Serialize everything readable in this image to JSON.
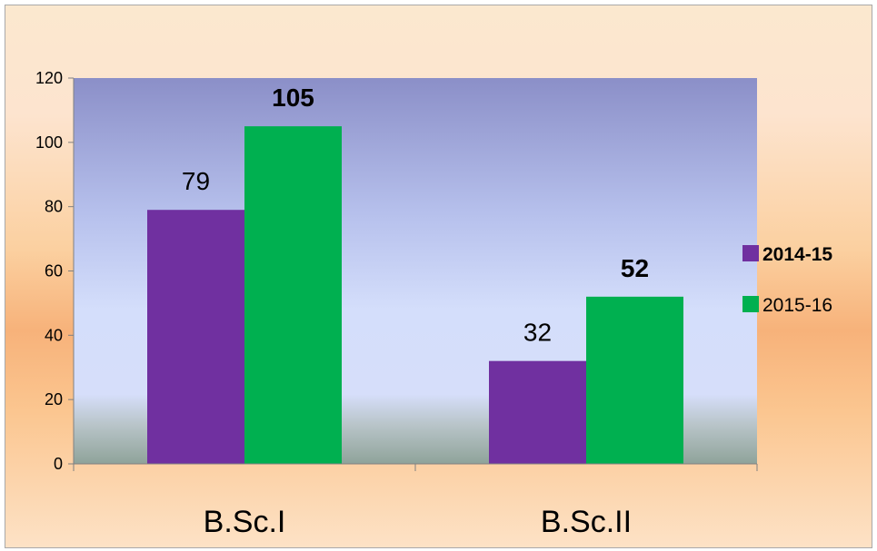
{
  "chart_data": {
    "type": "bar",
    "categories": [
      "B.Sc.I",
      "B.Sc.II"
    ],
    "series": [
      {
        "name": "2014-15",
        "values": [
          79,
          32
        ],
        "color": "#7030a0",
        "label_bold": false
      },
      {
        "name": "2015-16",
        "values": [
          105,
          52
        ],
        "color": "#00b050",
        "label_bold": true
      }
    ],
    "ylim": [
      0,
      120
    ],
    "yticks": [
      0,
      20,
      40,
      60,
      80,
      100,
      120
    ],
    "title": "",
    "xlabel": "",
    "ylabel": "",
    "grid": false,
    "legend_position": "right"
  }
}
